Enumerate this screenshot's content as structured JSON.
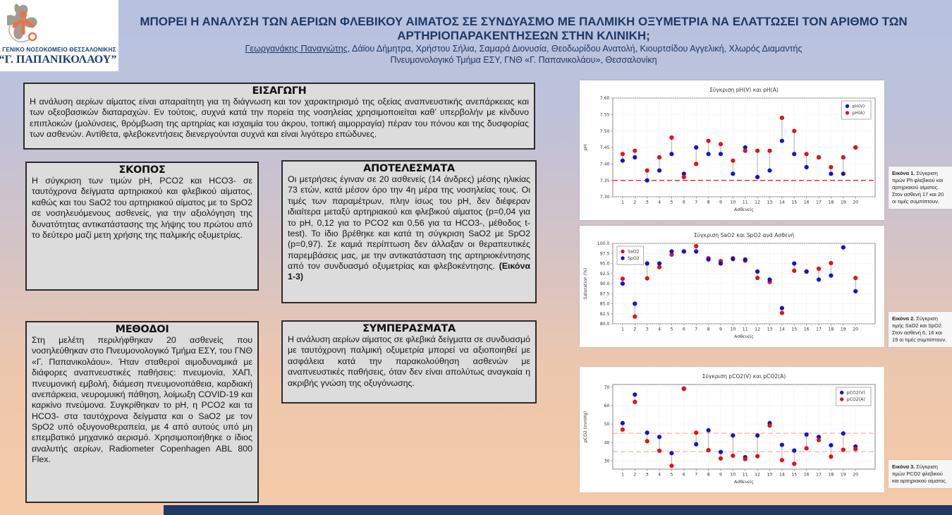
{
  "theme": {
    "title_color": "#1f3864",
    "box_background": "#dcdcdc",
    "box_border": "#2b2b2b",
    "footer_bar_color": "#1f3864",
    "series_blue": "#1414cc",
    "series_red": "#e81010"
  },
  "header": {
    "logo": {
      "line1": "ΓΕΝΙΚΟ ΝΟΣΟΚΟΜΕΙΟ ΘΕΣΣΑΛΟΝΙΚΗΣ",
      "line2": "“Γ. ΠΑΠΑΝΙΚΟΛΑΟΥ”"
    },
    "title_line1": "ΜΠΟΡΕΙ Η ΑΝΑΛΥΣΗ ΤΩΝ ΑΕΡΙΩΝ ΦΛΕΒΙΚΟΥ ΑΙΜΑΤΟΣ ΣΕ ΣΥΝΔΥΑΣΜΟ ΜΕ ΠΑΛΜΙΚΗ ΟΞΥΜΕΤΡΙΑ ΝΑ ΕΛΑΤΤΩΣΕΙ ΤΟΝ ΑΡΙΘΜΟ ΤΩΝ",
    "title_line2": "ΑΡΤΗΡΙΟΠΑΡΑΚΕΝΤΗΣΕΩΝ ΣΤΗΝ ΚΛΙΝΙΚΗ;",
    "authors_first": "Γεωργανάκης Παναγιώτης",
    "authors_rest": ", Δάϊου Δήμητρα, Χρήστου Σήλια, Σαμαρά Διονυσία, Θεοδωρίδου Ανατολή, Κιουρτσίδου Αγγελική, Χλωρός Διαμαντής",
    "affiliation": "Πνευμονολογικό Τμήμα ΕΣΥ, ΓΝΘ «Γ. Παπανικολάου», Θεσσαλονίκη"
  },
  "sections": {
    "intro": {
      "title": "ΕΙΣΑΓΩΓΗ",
      "body": "Η ανάλυση αερίων αίματος είναι απαραίτητη για τη διάγνωση και τον χαρακτηρισμό της οξείας αναπνευστικής ανεπάρκειας και των οξεοβασικών διαταραχών. Εν τούτοις, συχνά κατά την  πορεία της νοσηλείας χρησιμοποιείται καθ’ υπερβολήν με κίνδυνο επιπλοκών  (μολύνσεις, θρόμβωση της αρτηρίας και ισχαιμία του άκρου, τοπική αιμορραγία) πέραν του πόνου και της δυσφορίας των ασθενών. Αντίθετα, φλεβοκεντήσεις διενεργούνται συχνά και είναι λιγότερο επώδυνες."
    },
    "purpose": {
      "title": "ΣΚΟΠΟΣ",
      "body": "Η σύγκριση των τιμών pH, PCO2 και HCO3- σε ταυτόχρονα δείγματα αρτηριακού και φλεβικού αίματος, καθώς και του SaO2 του αρτηριακού αίματος με το SpO2 σε νοσηλευόμενους ασθενείς, για την αξιολόγηση της δυνατότητας αντικατάστασης της λήψης του πρώτου από το δεύτερο μαζί μετη χρήσης της παλμικής οξυμετρίας."
    },
    "results": {
      "title": "ΑΠΟΤΕΛΕΣΜΑΤΑ",
      "body": "Οι μετρήσεις έγιναν σε 20 ασθενείς (14 άνδρες) μέσης ηλικίας 73 ετών, κατά μέσον όρο την 4η μέρα της νοσηλείας τους. Οι τιμές των παραμέτρων, πλην ίσως του pH, δεν διέφεραν ιδιαίτερα μεταξύ αρτηριακού και φλεβικού αίματος (p=0,04 για το pH,  0,12 για το PCO2 και 0,56 για τα HCO3-, μέθοδος t-test). Το ίδιο βρέθηκε και κατά τη σύγκριση SaO2 με SpO2 (p=0,97). Σε καμιά περίπτωση δεν άλλαξαν οι θεραπευτικές παρεμβάσεις μας, με την αντικατάσταση της αρτηριοκέντησης από τον συνδυασμό οξυμετρίας και φλεβοκέντησης. ",
      "body_bold": "(Εικόνα 1-3)"
    },
    "methods": {
      "title": "ΜΕΘΟΔΟΙ",
      "body": "Στη μελέτη περιλήφθηκαν 20 ασθενείς που νοσηλεύθηκαν στο Πνευμονολογικό Τμήμα ΕΣΥ, του ΓΝΘ «Γ. Παπανικολάου». Ήταν σταθεροί αιμοδυναμικά με διάφορες αναπνευστικές παθήσεις: πνευμονία, ΧΑΠ, πνευμονική εμβολή, διάμεση πνευμονοπάθεια, καρδιακή ανεπάρκεια, νευρομυική πάθηση, λοίμωξη COVID-19 και καρκίνο πνεύμονα. Συγκρίθηκαν το pH, η PCO2 και τα HCO3- στα ταυτόχρονα δείγματα και ο SaO2 με τον SpO2 υπό οξυγονοθεραπεία, με 4 από αυτούς υπό μη επεμβατικό μηχανικό αερισμό. Χρησιμοποιήθηκε ο ίδιος αναλυτής αερίων, Radiometer Copenhagen ABL 800 Flex."
    },
    "conclusions": {
      "title": "ΣΥΜΠΕΡΑΣΜΑΤΑ",
      "body": "Η ανάλυση αερίων αίματος σε φλεβικά δείγματα σε συνδυασμό με ταυτόχρονη παλμική οξυμετρία μπορεί να αξιοποιηθεί με ασφάλεια κατά την παρακολούθηση ασθενών με αναπνευστικές παθήσεις, όταν δεν είναι απολύτως αναγκαία η ακριβής γνώση της οξυγόνωσης."
    }
  },
  "captions": [
    {
      "label": "Εικόνα 1.",
      "text": " Σύγκριση τιμών Ph φλεβικού και αρτηριακού αίματος. Στον ασθενή 17 και 20 οι τιμές συμπίπτουν."
    },
    {
      "label": "Εικόνα 2.",
      "text": " Σύγκριση τιμής SaO2 και SpO2. Στον ασθενή 6, 16 και 19 οι τιμές συμπίπτουν."
    },
    {
      "label": "Εικόνα 3.",
      "text": " Σύγκριση τιμών PCO2 φλεβικού και αρτηριακού αίματος."
    }
  ],
  "chart_data": [
    {
      "type": "scatter",
      "title": "Σύγκριση pH(V) και pH(A)",
      "xlabel": "Ασθενείς",
      "ylabel": "pH",
      "x": [
        1,
        2,
        3,
        4,
        5,
        6,
        7,
        8,
        9,
        10,
        11,
        12,
        13,
        14,
        15,
        16,
        17,
        18,
        19,
        20
      ],
      "ylim": [
        7.3,
        7.6
      ],
      "yticks": [
        "7.30",
        "7.35",
        "7.40",
        "7.45",
        "7.50",
        "7.55",
        "7.60"
      ],
      "grid": true,
      "legend_position": "top-right",
      "connect_pairs": true,
      "hlines": [
        {
          "y": 7.35,
          "color": "#ff1a1a",
          "style": "dashed"
        }
      ],
      "series": [
        {
          "name": "pH(V)",
          "color": "#1414cc",
          "values": [
            7.41,
            7.42,
            7.35,
            7.38,
            7.43,
            7.37,
            7.45,
            7.43,
            7.43,
            7.37,
            7.45,
            7.36,
            7.38,
            7.47,
            7.43,
            7.39,
            7.42,
            7.37,
            7.37,
            7.45
          ]
        },
        {
          "name": "pH(A)",
          "color": "#e81010",
          "values": [
            7.43,
            7.44,
            7.38,
            7.42,
            7.48,
            7.36,
            7.4,
            7.47,
            7.46,
            7.41,
            7.44,
            7.44,
            7.44,
            7.54,
            7.5,
            7.43,
            7.42,
            7.39,
            7.42,
            7.45
          ]
        }
      ]
    },
    {
      "type": "scatter",
      "title": "Σύγκριση SaO2 και SpO2 ανά Ασθενή",
      "xlabel": "Ασθενείς",
      "ylabel": "Saturation (%)",
      "x": [
        1,
        2,
        3,
        4,
        5,
        6,
        7,
        8,
        9,
        10,
        11,
        12,
        13,
        14,
        15,
        16,
        17,
        18,
        19,
        20
      ],
      "ylim": [
        80.0,
        100.0
      ],
      "yticks": [
        "80.0",
        "82.5",
        "85.0",
        "87.5",
        "90.0",
        "92.5",
        "95.0",
        "97.5",
        "100.0"
      ],
      "grid": true,
      "legend_position": "top-left",
      "connect_pairs": true,
      "hlines": [],
      "series": [
        {
          "name": "SaO2",
          "color": "#e81010",
          "values": [
            91.2,
            81.8,
            91.3,
            94.1,
            97.2,
            98.0,
            99.3,
            96.3,
            95.6,
            96.3,
            95.7,
            91.4,
            90.4,
            82.7,
            93.2,
            93.0,
            93.7,
            95.1,
            99.0,
            91.4
          ]
        },
        {
          "name": "SpO2",
          "color": "#1414cc",
          "values": [
            90.0,
            85.0,
            95.0,
            95.0,
            98.0,
            98.0,
            98.0,
            96.0,
            95.0,
            96.1,
            96.0,
            93.0,
            91.0,
            83.9,
            95.0,
            93.0,
            91.0,
            92.0,
            99.0,
            88.1
          ]
        }
      ]
    },
    {
      "type": "scatter",
      "title": "Σύγκριση pCO2(V) και pCO2(A)",
      "xlabel": "Ασθενείς",
      "ylabel": "pCO2 (mmHg)",
      "x": [
        1,
        2,
        3,
        4,
        5,
        6,
        7,
        8,
        9,
        10,
        11,
        12,
        13,
        14,
        15,
        16,
        17,
        18,
        19,
        20
      ],
      "ylim": [
        25.5,
        71.5
      ],
      "yticks": [
        "30",
        "40",
        "50",
        "60",
        "70"
      ],
      "grid": true,
      "legend_position": "top-right",
      "connect_pairs": true,
      "hlines": [
        {
          "y": 45,
          "color": "#f2b3ab",
          "style": "dashed"
        },
        {
          "y": 35,
          "color": "#f2b3ab",
          "style": "dashed"
        }
      ],
      "series": [
        {
          "name": "pCO2(V)",
          "color": "#1414cc",
          "values": [
            50.5,
            66,
            45.3,
            43,
            34.2,
            69.3,
            39,
            46.6,
            34.8,
            43.8,
            32,
            43.8,
            50.5,
            38.7,
            35.6,
            44.3,
            43,
            38.5,
            44.9,
            37.8
          ]
        },
        {
          "name": "pCO2(A)",
          "color": "#e81010",
          "values": [
            47,
            62,
            40.7,
            35.5,
            27.3,
            69.1,
            45.3,
            35.8,
            31.3,
            32.8,
            31,
            32.5,
            49.2,
            30.4,
            28.4,
            36.8,
            41.3,
            32.3,
            36,
            36.4
          ]
        }
      ]
    }
  ]
}
